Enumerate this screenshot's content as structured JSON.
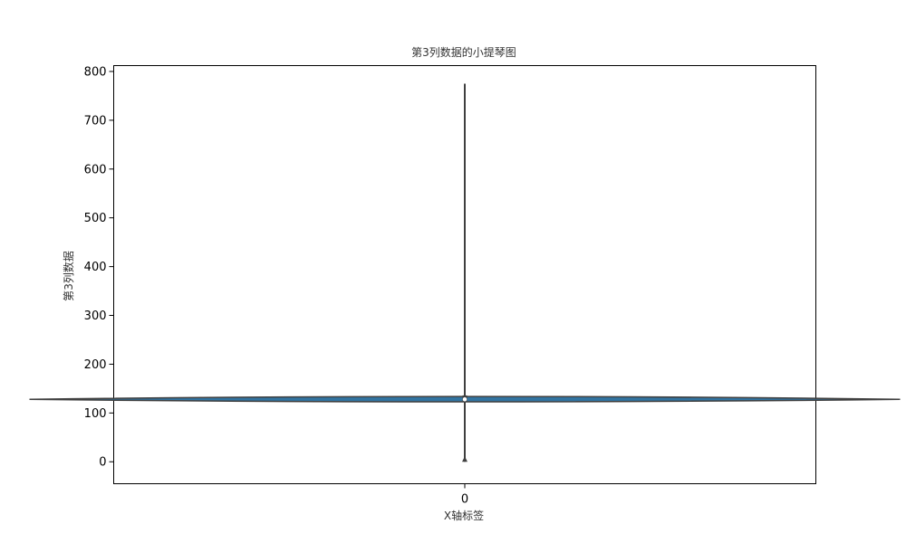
{
  "chart_data": {
    "type": "violin",
    "title": "第3列数据的小提琴图",
    "xlabel": "X轴标签",
    "ylabel": "第3列数据",
    "categories": [
      "0"
    ],
    "ylim": [
      -45,
      812
    ],
    "yticks": [
      0,
      100,
      200,
      300,
      400,
      500,
      600,
      700,
      800
    ],
    "grid": false,
    "colors": {
      "violin_fill": "#3274a1",
      "violin_edge": "#3f3f3f",
      "whisker": "#3f3f3f",
      "median": "#ffffff"
    },
    "series": [
      {
        "category": "0",
        "min": 0,
        "max": 775,
        "q1": 122,
        "median": 128,
        "q3": 136,
        "density_profile": [
          {
            "y": 120,
            "width": 0.3
          },
          {
            "y": 124,
            "width": 0.8
          },
          {
            "y": 128,
            "width": 1.0
          },
          {
            "y": 132,
            "width": 0.8
          },
          {
            "y": 137,
            "width": 0.3
          }
        ]
      }
    ]
  }
}
